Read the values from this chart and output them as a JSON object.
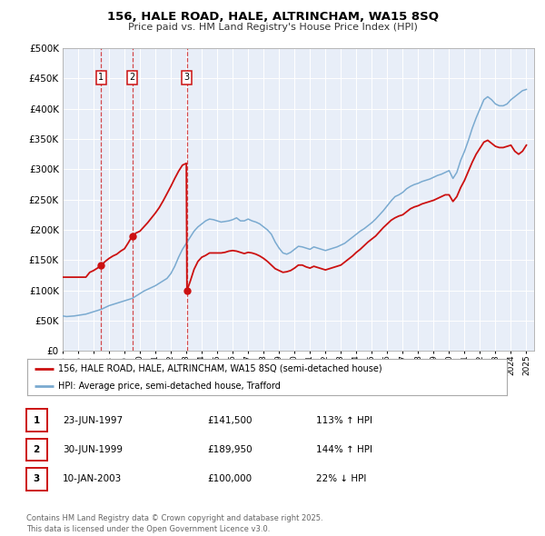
{
  "title": "156, HALE ROAD, HALE, ALTRINCHAM, WA15 8SQ",
  "subtitle": "Price paid vs. HM Land Registry's House Price Index (HPI)",
  "ylim": [
    0,
    500000
  ],
  "yticks": [
    0,
    50000,
    100000,
    150000,
    200000,
    250000,
    300000,
    350000,
    400000,
    450000,
    500000
  ],
  "xlim_start": 1995.0,
  "xlim_end": 2025.5,
  "background_color": "#ffffff",
  "plot_bg_color": "#e8eef8",
  "grid_color": "#ffffff",
  "hpi_color": "#7aaad0",
  "price_color": "#cc1111",
  "legend_label_price": "156, HALE ROAD, HALE, ALTRINCHAM, WA15 8SQ (semi-detached house)",
  "legend_label_hpi": "HPI: Average price, semi-detached house, Trafford",
  "sales": [
    {
      "date": 1997.48,
      "price": 141500,
      "label": "1"
    },
    {
      "date": 1999.5,
      "price": 189950,
      "label": "2"
    },
    {
      "date": 2003.04,
      "price": 100000,
      "label": "3"
    }
  ],
  "sale_labels": [
    {
      "num": "1",
      "date": "23-JUN-1997",
      "price": "£141,500",
      "pct": "113% ↑ HPI"
    },
    {
      "num": "2",
      "date": "30-JUN-1999",
      "price": "£189,950",
      "pct": "144% ↑ HPI"
    },
    {
      "num": "3",
      "date": "10-JAN-2003",
      "price": "£100,000",
      "pct": "22% ↓ HPI"
    }
  ],
  "footer": "Contains HM Land Registry data © Crown copyright and database right 2025.\nThis data is licensed under the Open Government Licence v3.0.",
  "hpi_data_years": [
    1995.0,
    1995.25,
    1995.5,
    1995.75,
    1996.0,
    1996.25,
    1996.5,
    1996.75,
    1997.0,
    1997.25,
    1997.5,
    1997.75,
    1998.0,
    1998.25,
    1998.5,
    1998.75,
    1999.0,
    1999.25,
    1999.5,
    1999.75,
    2000.0,
    2000.25,
    2000.5,
    2000.75,
    2001.0,
    2001.25,
    2001.5,
    2001.75,
    2002.0,
    2002.25,
    2002.5,
    2002.75,
    2003.0,
    2003.25,
    2003.5,
    2003.75,
    2004.0,
    2004.25,
    2004.5,
    2004.75,
    2005.0,
    2005.25,
    2005.5,
    2005.75,
    2006.0,
    2006.25,
    2006.5,
    2006.75,
    2007.0,
    2007.25,
    2007.5,
    2007.75,
    2008.0,
    2008.25,
    2008.5,
    2008.75,
    2009.0,
    2009.25,
    2009.5,
    2009.75,
    2010.0,
    2010.25,
    2010.5,
    2010.75,
    2011.0,
    2011.25,
    2011.5,
    2011.75,
    2012.0,
    2012.25,
    2012.5,
    2012.75,
    2013.0,
    2013.25,
    2013.5,
    2013.75,
    2014.0,
    2014.25,
    2014.5,
    2014.75,
    2015.0,
    2015.25,
    2015.5,
    2015.75,
    2016.0,
    2016.25,
    2016.5,
    2016.75,
    2017.0,
    2017.25,
    2017.5,
    2017.75,
    2018.0,
    2018.25,
    2018.5,
    2018.75,
    2019.0,
    2019.25,
    2019.5,
    2019.75,
    2020.0,
    2020.25,
    2020.5,
    2020.75,
    2021.0,
    2021.25,
    2021.5,
    2021.75,
    2022.0,
    2022.25,
    2022.5,
    2022.75,
    2023.0,
    2023.25,
    2023.5,
    2023.75,
    2024.0,
    2024.25,
    2024.5,
    2024.75,
    2025.0
  ],
  "hpi_data_values": [
    58000,
    57000,
    57500,
    58000,
    59000,
    60000,
    61000,
    63000,
    65000,
    67000,
    69000,
    72000,
    75000,
    77000,
    79000,
    81000,
    83000,
    85000,
    87000,
    91000,
    95000,
    99000,
    102000,
    105000,
    108000,
    112000,
    116000,
    120000,
    128000,
    140000,
    155000,
    168000,
    178000,
    188000,
    198000,
    205000,
    210000,
    215000,
    218000,
    217000,
    215000,
    213000,
    214000,
    215000,
    217000,
    220000,
    215000,
    215000,
    218000,
    215000,
    213000,
    210000,
    205000,
    200000,
    193000,
    180000,
    170000,
    162000,
    160000,
    163000,
    168000,
    173000,
    172000,
    170000,
    168000,
    172000,
    170000,
    168000,
    166000,
    168000,
    170000,
    172000,
    175000,
    178000,
    183000,
    188000,
    193000,
    198000,
    202000,
    207000,
    212000,
    218000,
    225000,
    232000,
    240000,
    248000,
    255000,
    258000,
    262000,
    268000,
    272000,
    275000,
    277000,
    280000,
    282000,
    284000,
    287000,
    290000,
    292000,
    295000,
    298000,
    285000,
    295000,
    315000,
    330000,
    348000,
    368000,
    385000,
    400000,
    415000,
    420000,
    415000,
    408000,
    405000,
    405000,
    408000,
    415000,
    420000,
    425000,
    430000,
    432000
  ],
  "price_data_years": [
    1995.0,
    1995.25,
    1995.5,
    1995.75,
    1996.0,
    1996.25,
    1996.5,
    1996.75,
    1997.0,
    1997.25,
    1997.48,
    1997.75,
    1998.0,
    1998.25,
    1998.5,
    1998.75,
    1999.0,
    1999.25,
    1999.5,
    1999.75,
    2000.0,
    2000.25,
    2000.5,
    2000.75,
    2001.0,
    2001.25,
    2001.5,
    2001.75,
    2002.0,
    2002.25,
    2002.5,
    2002.75,
    2003.0,
    2003.04,
    2003.25,
    2003.5,
    2003.75,
    2004.0,
    2004.25,
    2004.5,
    2005.0,
    2005.25,
    2005.5,
    2005.75,
    2006.0,
    2006.25,
    2006.5,
    2006.75,
    2007.0,
    2007.25,
    2007.5,
    2007.75,
    2008.0,
    2008.25,
    2008.5,
    2008.75,
    2009.0,
    2009.25,
    2009.5,
    2009.75,
    2010.0,
    2010.25,
    2010.5,
    2010.75,
    2011.0,
    2011.25,
    2011.5,
    2011.75,
    2012.0,
    2012.25,
    2012.5,
    2012.75,
    2013.0,
    2013.25,
    2013.5,
    2013.75,
    2014.0,
    2014.25,
    2014.5,
    2014.75,
    2015.0,
    2015.25,
    2015.5,
    2015.75,
    2016.0,
    2016.25,
    2016.5,
    2016.75,
    2017.0,
    2017.25,
    2017.5,
    2017.75,
    2018.0,
    2018.25,
    2018.5,
    2018.75,
    2019.0,
    2019.25,
    2019.5,
    2019.75,
    2020.0,
    2020.25,
    2020.5,
    2020.75,
    2021.0,
    2021.25,
    2021.5,
    2021.75,
    2022.0,
    2022.25,
    2022.5,
    2022.75,
    2023.0,
    2023.25,
    2023.5,
    2023.75,
    2024.0,
    2024.25,
    2024.5,
    2024.75,
    2025.0
  ],
  "price_data_values": [
    122000,
    122000,
    122000,
    122000,
    122000,
    122000,
    122000,
    130000,
    133000,
    137000,
    141500,
    148000,
    153000,
    157000,
    160000,
    165000,
    169000,
    179000,
    189950,
    195000,
    198000,
    205000,
    212000,
    220000,
    228000,
    237000,
    248000,
    260000,
    272000,
    285000,
    297000,
    307000,
    310000,
    100000,
    115000,
    135000,
    148000,
    155000,
    158000,
    162000,
    162000,
    162000,
    163000,
    165000,
    166000,
    165000,
    163000,
    161000,
    163000,
    162000,
    160000,
    157000,
    153000,
    148000,
    142000,
    136000,
    133000,
    130000,
    131000,
    133000,
    137000,
    142000,
    142000,
    139000,
    137000,
    140000,
    138000,
    136000,
    134000,
    136000,
    138000,
    140000,
    142000,
    147000,
    152000,
    157000,
    163000,
    168000,
    174000,
    180000,
    185000,
    190000,
    197000,
    204000,
    210000,
    216000,
    220000,
    223000,
    225000,
    230000,
    235000,
    238000,
    240000,
    243000,
    245000,
    247000,
    249000,
    252000,
    255000,
    258000,
    258000,
    247000,
    255000,
    270000,
    282000,
    297000,
    312000,
    325000,
    335000,
    345000,
    348000,
    343000,
    338000,
    336000,
    336000,
    338000,
    340000,
    330000,
    325000,
    330000,
    340000
  ]
}
